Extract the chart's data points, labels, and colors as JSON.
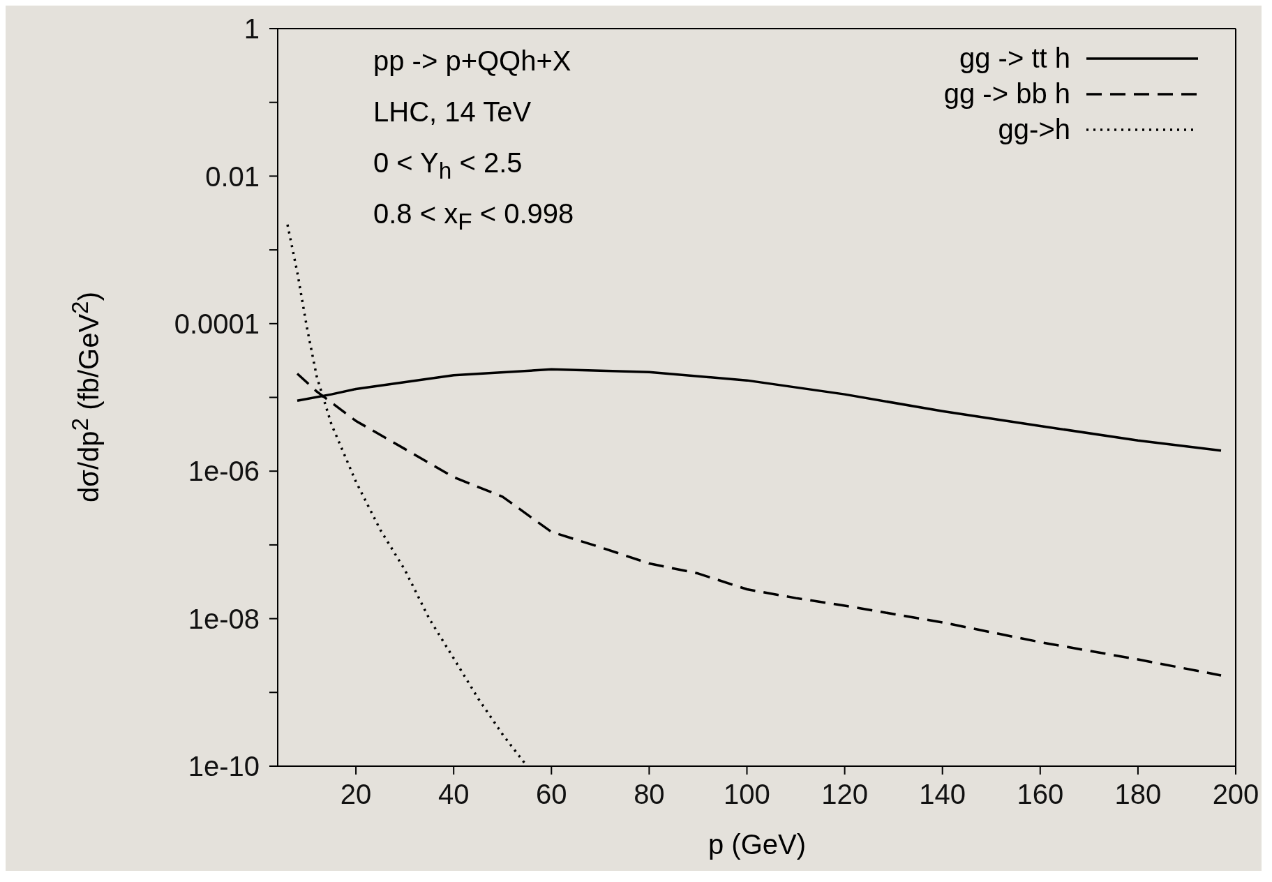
{
  "chart_data": {
    "type": "line",
    "xlabel": "p (GeV)",
    "ylabel": "dσ/dp$^{2}$ (fb/GeV$^{2}$)",
    "annotations": [
      "pp -> p+QQh+X",
      "LHC, 14 TeV",
      "0 < Y$_{h}$ < 2.5",
      "0.8 < x$_{F}$ < 0.998"
    ],
    "xlim": [
      4,
      200
    ],
    "xticks": [
      20,
      40,
      60,
      80,
      100,
      120,
      140,
      160,
      180,
      200
    ],
    "ylim": [
      1e-10,
      1
    ],
    "log": true,
    "yticks": [
      1e-10,
      {
        "value": 1e-09,
        "label": null
      },
      {
        "value": 1e-08,
        "label": "1e-08"
      },
      {
        "value": 1e-07,
        "label": null
      },
      {
        "value": 1e-06,
        "label": "1e-06"
      },
      {
        "value": 1e-05,
        "label": null
      },
      0.0001,
      {
        "value": 0.001,
        "label": null
      },
      0.01,
      {
        "value": 0.1,
        "label": null
      },
      1
    ],
    "legend": "top right",
    "series": [
      {
        "name": "gg -> tt h",
        "color": "#000000",
        "line_style": "solid",
        "x": [
          8,
          15,
          20,
          40,
          60,
          80,
          100,
          120,
          140,
          160,
          180,
          197
        ],
        "values": [
          9e-06,
          1.1e-05,
          1.3e-05,
          2e-05,
          2.4e-05,
          2.2e-05,
          1.7e-05,
          1.1e-05,
          6.5e-06,
          4.1e-06,
          2.6e-06,
          1.9e-06
        ]
      },
      {
        "name": "gg -> bb h",
        "color": "#000000",
        "line_style": "dashed",
        "x": [
          8,
          12,
          20,
          30,
          40,
          50,
          60,
          70,
          80,
          90,
          100,
          110,
          120,
          140,
          160,
          180,
          197
        ],
        "values": [
          2.1e-05,
          1.2e-05,
          4.8e-06,
          2e-06,
          8.3e-07,
          4.5e-07,
          1.5e-07,
          9.3e-08,
          5.6e-08,
          4.1e-08,
          2.5e-08,
          1.9e-08,
          1.5e-08,
          8.9e-09,
          4.8e-09,
          2.8e-09,
          1.7e-09
        ]
      },
      {
        "name": "gg->h",
        "color": "#000000",
        "line_style": "dotted",
        "x": [
          6,
          8,
          10,
          12,
          15,
          20,
          25,
          30,
          35,
          40,
          45,
          50,
          55
        ],
        "values": [
          0.0022,
          0.0005,
          8.7e-05,
          1.9e-05,
          4.3e-06,
          7.2e-07,
          1.6e-07,
          4.6e-08,
          1e-08,
          2.9e-09,
          8.3e-10,
          2.7e-10,
          1e-10
        ]
      }
    ]
  }
}
